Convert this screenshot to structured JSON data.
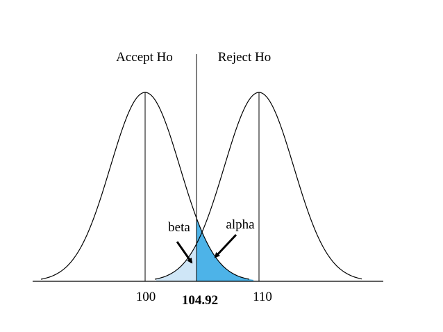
{
  "regions": {
    "left": "Accept Ho",
    "right": "Reject Ho"
  },
  "areas": {
    "beta": "beta",
    "alpha": "alpha"
  },
  "axis_labels": {
    "left_mean": "100",
    "cutoff": "104.92",
    "right_mean": "110"
  }
}
